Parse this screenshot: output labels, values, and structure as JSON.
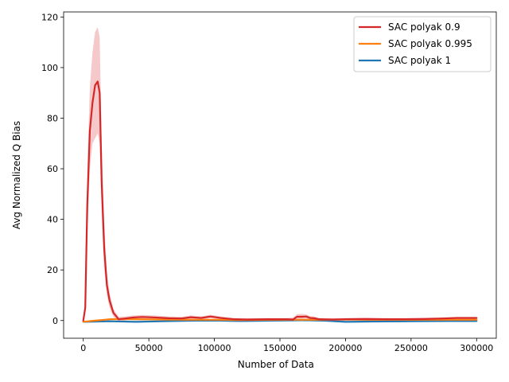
{
  "chart_data": {
    "type": "line",
    "title": "",
    "xlabel": "Number of Data",
    "ylabel": "Avg Normalized Q Bias",
    "xlim": [
      -15000,
      315000
    ],
    "ylim": [
      -7,
      122
    ],
    "xticks": [
      0,
      50000,
      100000,
      150000,
      200000,
      250000,
      300000
    ],
    "xtick_labels": [
      "0",
      "50000",
      "100000",
      "150000",
      "200000",
      "250000",
      "300000"
    ],
    "yticks": [
      0,
      20,
      40,
      60,
      80,
      100,
      120
    ],
    "ytick_labels": [
      "0",
      "20",
      "40",
      "60",
      "80",
      "100",
      "120"
    ],
    "grid": false,
    "legend_position": "top-right",
    "series": [
      {
        "name": "SAC polyak 0.9",
        "color": "#d62728",
        "band_color": "#d62728",
        "x": [
          0,
          1500,
          3000,
          5000,
          7000,
          9000,
          11000,
          12500,
          14000,
          16000,
          18000,
          20000,
          23000,
          27000,
          32000,
          38000,
          45000,
          55000,
          65000,
          75000,
          82000,
          90000,
          97000,
          105000,
          115000,
          125000,
          140000,
          155000,
          160000,
          163000,
          167000,
          170000,
          173000,
          176000,
          180000,
          190000,
          200000,
          215000,
          230000,
          245000,
          260000,
          275000,
          285000,
          300000
        ],
        "y": [
          0,
          5,
          45,
          75,
          86,
          93,
          94.5,
          90,
          55,
          28,
          14,
          8,
          3,
          0.5,
          0.8,
          1.2,
          1.4,
          1.2,
          0.9,
          0.8,
          1.3,
          1.0,
          1.6,
          1.0,
          0.5,
          0.4,
          0.5,
          0.5,
          0.4,
          1.5,
          1.5,
          1.6,
          1.0,
          0.9,
          0.5,
          0.4,
          0.5,
          0.6,
          0.5,
          0.5,
          0.6,
          0.8,
          1.0,
          1.0
        ],
        "upper": [
          0,
          7,
          58,
          92,
          106,
          114,
          116,
          112,
          70,
          38,
          19,
          11,
          4.5,
          1.5,
          1.6,
          2.0,
          2.2,
          2.0,
          1.6,
          1.5,
          2.0,
          1.7,
          2.3,
          1.6,
          1.0,
          0.9,
          1.0,
          1.0,
          1.2,
          2.5,
          2.6,
          2.4,
          1.8,
          1.6,
          1.0,
          0.9,
          1.0,
          1.1,
          1.0,
          1.0,
          1.1,
          1.3,
          1.5,
          1.5
        ],
        "lower": [
          0,
          3,
          32,
          60,
          70,
          72,
          74,
          70,
          42,
          20,
          10,
          5,
          1.5,
          -0.5,
          0.0,
          0.4,
          0.6,
          0.4,
          0.2,
          0.1,
          0.6,
          0.3,
          0.9,
          0.4,
          0.0,
          -0.1,
          0.0,
          0.0,
          -0.3,
          0.5,
          0.4,
          0.8,
          0.2,
          0.2,
          0.0,
          -0.1,
          0.0,
          0.1,
          0.0,
          0.0,
          0.1,
          0.3,
          0.5,
          0.5
        ]
      },
      {
        "name": "SAC polyak 0.995",
        "color": "#ff7f0e",
        "band_color": "#ff7f0e",
        "x": [
          0,
          10000,
          20000,
          30000,
          40000,
          60000,
          80000,
          100000,
          120000,
          150000,
          180000,
          200000,
          220000,
          250000,
          280000,
          300000
        ],
        "y": [
          -0.5,
          0.0,
          0.5,
          0.6,
          0.5,
          0.4,
          0.3,
          0.3,
          0.2,
          0.3,
          0.3,
          0.4,
          0.3,
          0.3,
          0.3,
          0.3
        ],
        "upper": [
          -0.2,
          0.3,
          0.8,
          0.9,
          0.8,
          0.7,
          0.6,
          0.6,
          0.5,
          0.6,
          0.6,
          0.7,
          0.6,
          0.6,
          0.6,
          0.6
        ],
        "lower": [
          -0.8,
          -0.3,
          0.2,
          0.3,
          0.2,
          0.1,
          0.0,
          0.0,
          -0.1,
          0.0,
          0.0,
          0.1,
          0.0,
          0.0,
          0.0,
          0.0
        ]
      },
      {
        "name": "SAC polyak 1",
        "color": "#1f77b4",
        "band_color": "#1f77b4",
        "x": [
          0,
          20000,
          40000,
          60000,
          80000,
          100000,
          120000,
          150000,
          170000,
          185000,
          200000,
          220000,
          250000,
          280000,
          300000
        ],
        "y": [
          -0.5,
          -0.3,
          -0.5,
          -0.3,
          -0.1,
          0.0,
          -0.2,
          0.0,
          0.1,
          -0.1,
          -0.5,
          -0.4,
          -0.3,
          -0.2,
          -0.2
        ],
        "upper": [
          -0.2,
          0.0,
          -0.2,
          0.0,
          0.2,
          0.3,
          0.1,
          0.3,
          0.4,
          0.2,
          -0.2,
          -0.1,
          0.0,
          0.1,
          0.1
        ],
        "lower": [
          -0.8,
          -0.6,
          -0.8,
          -0.6,
          -0.4,
          -0.3,
          -0.5,
          -0.3,
          -0.2,
          -0.4,
          -0.8,
          -0.7,
          -0.6,
          -0.5,
          -0.5
        ]
      }
    ]
  }
}
